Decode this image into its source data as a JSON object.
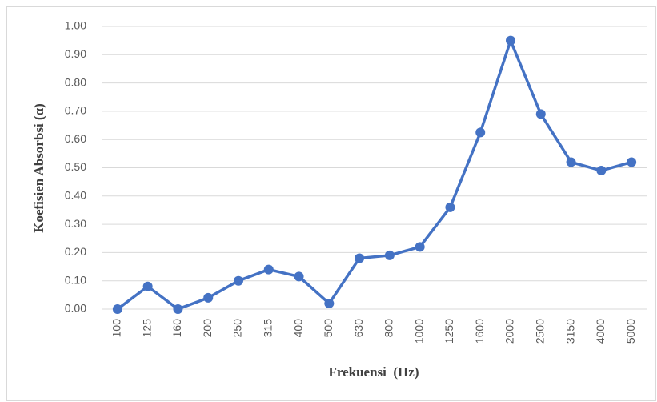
{
  "chart_data": {
    "type": "line",
    "xlabel": "Frekuensi  (Hz)",
    "ylabel": "Koefisien Absorbsi (α)",
    "categories": [
      "100",
      "125",
      "160",
      "200",
      "250",
      "315",
      "400",
      "500",
      "630",
      "800",
      "1000",
      "1250",
      "1600",
      "2000",
      "2500",
      "3150",
      "4000",
      "5000"
    ],
    "series": [
      {
        "name": "Koefisien Absorbsi",
        "color": "#4472c4",
        "values": [
          0,
          0.08,
          0,
          0.04,
          0.1,
          0.14,
          0.115,
          0.02,
          0.18,
          0.19,
          0.22,
          0.36,
          0.625,
          0.95,
          0.69,
          0.52,
          0.49,
          0.52
        ]
      }
    ],
    "ylim": [
      0,
      1
    ],
    "yticks": [
      {
        "value": 0,
        "label": "0.00"
      },
      {
        "value": 0.1,
        "label": "0.10"
      },
      {
        "value": 0.2,
        "label": "0.20"
      },
      {
        "value": 0.3,
        "label": "0.30"
      },
      {
        "value": 0.4,
        "label": "0.40"
      },
      {
        "value": 0.5,
        "label": "0.50"
      },
      {
        "value": 0.6,
        "label": "0.60"
      },
      {
        "value": 0.7,
        "label": "0.70"
      },
      {
        "value": 0.8,
        "label": "0.80"
      },
      {
        "value": 0.9,
        "label": "0.90"
      },
      {
        "value": 1,
        "label": "1.00"
      }
    ],
    "grid": true
  }
}
